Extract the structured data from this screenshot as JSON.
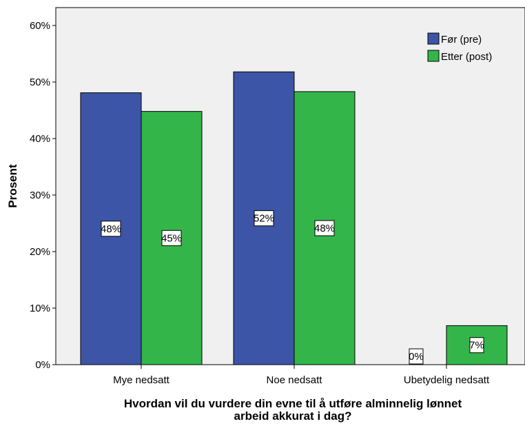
{
  "chart_data": {
    "type": "bar",
    "categories": [
      "Mye nedsatt",
      "Noe nedsatt",
      "Ubetydelig nedsatt"
    ],
    "series": [
      {
        "name": "Før (pre)",
        "values": [
          48.1,
          51.8,
          0.0
        ],
        "labels": [
          "48%",
          "52%",
          "0%"
        ],
        "color": "#3d55a6"
      },
      {
        "name": "Etter (post)",
        "values": [
          44.8,
          48.3,
          6.9
        ],
        "labels": [
          "45%",
          "48%",
          "7%"
        ],
        "color": "#33b54a"
      }
    ],
    "title": "",
    "xlabel_line1": "Hvordan vil du vurdere din evne til å utføre alminnelig lønnet",
    "xlabel_line2": "arbeid akkurat i dag?",
    "ylabel": "Prosent",
    "ylim": [
      0,
      60
    ],
    "yticks": [
      "0%",
      "10%",
      "20%",
      "30%",
      "40%",
      "50%",
      "60%"
    ],
    "legend_position": "top-right",
    "plot_background": "#f0f0f0",
    "grid": false
  }
}
